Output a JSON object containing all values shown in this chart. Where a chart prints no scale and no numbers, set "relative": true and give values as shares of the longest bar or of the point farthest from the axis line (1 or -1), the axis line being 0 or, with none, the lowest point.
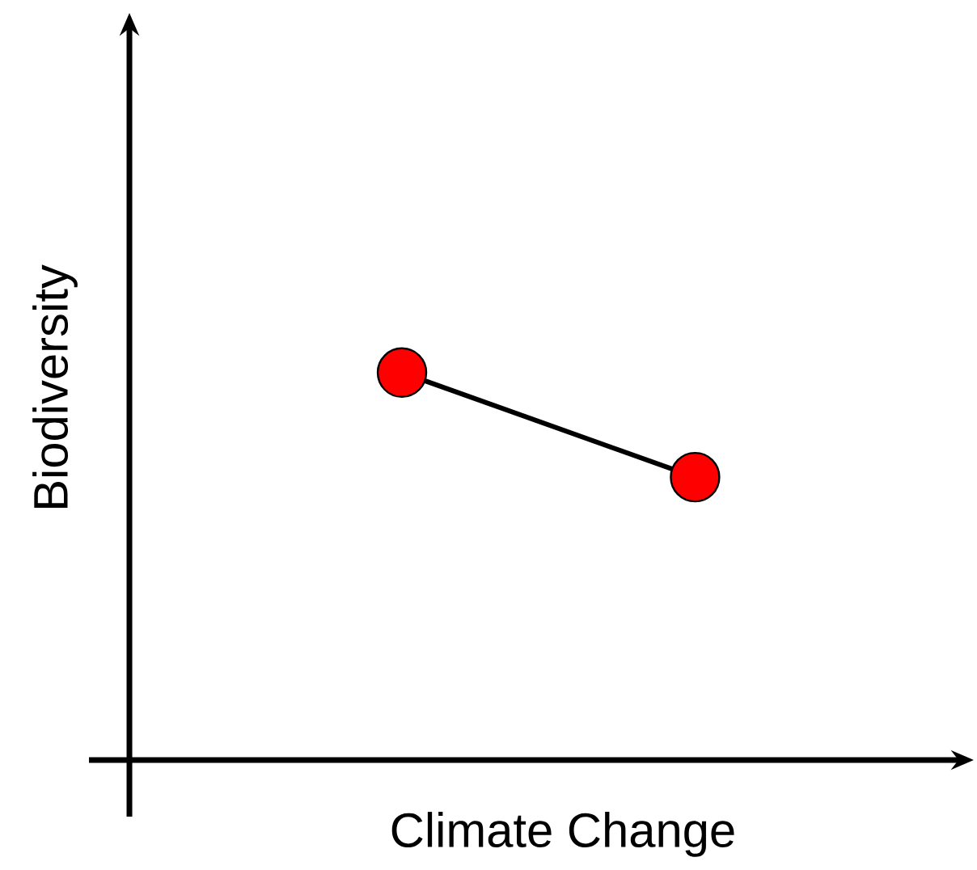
{
  "chart_data": {
    "type": "line",
    "relative": true,
    "xlabel": "Climate Change",
    "ylabel": "Biodiversity",
    "categories": [
      null,
      null
    ],
    "marker": "circle",
    "series": [
      {
        "color": "#000000",
        "colors": [
          "#ff0000",
          "#ff0000"
        ],
        "values": [
          1,
          0.73
        ]
      }
    ]
  }
}
